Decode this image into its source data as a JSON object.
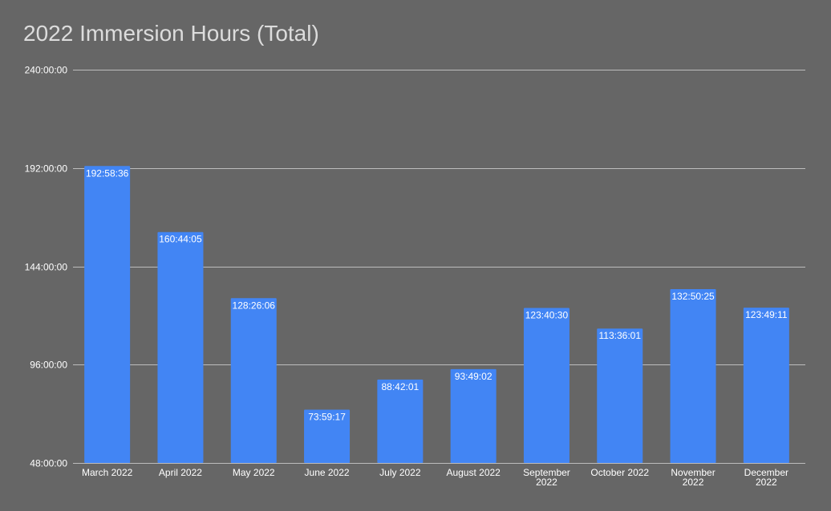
{
  "chart_data": {
    "type": "bar",
    "title": "2022 Immersion Hours (Total)",
    "xlabel": "",
    "ylabel": "",
    "ylim": [
      48,
      240
    ],
    "ytick_values": [
      48,
      96,
      144,
      192,
      240
    ],
    "ytick_labels": [
      "48:00:00",
      "96:00:00",
      "144:00:00",
      "192:00:00",
      "240:00:00"
    ],
    "grid": true,
    "legend": "none",
    "categories": [
      [
        "March 2022"
      ],
      [
        "April 2022"
      ],
      [
        "May 2022"
      ],
      [
        "June 2022"
      ],
      [
        "July 2022"
      ],
      [
        "August 2022"
      ],
      [
        "September",
        "2022"
      ],
      [
        "October 2022"
      ],
      [
        "November",
        "2022"
      ],
      [
        "December",
        "2022"
      ]
    ],
    "values": [
      192.977,
      160.735,
      128.435,
      73.988,
      88.7,
      93.817,
      123.675,
      113.6,
      132.84,
      123.82
    ],
    "data_labels": [
      "192:58:36",
      "160:44:05",
      "128:26:06",
      "73:59:17",
      "88:42:01",
      "93:49:02",
      "123:40:30",
      "113:36:01",
      "132:50:25",
      "123:49:11"
    ],
    "colors": {
      "bar": "#4285f4",
      "background": "#666666",
      "grid": "#bdbdbd",
      "title": "#dcdcdc",
      "text": "#ffffff"
    }
  }
}
